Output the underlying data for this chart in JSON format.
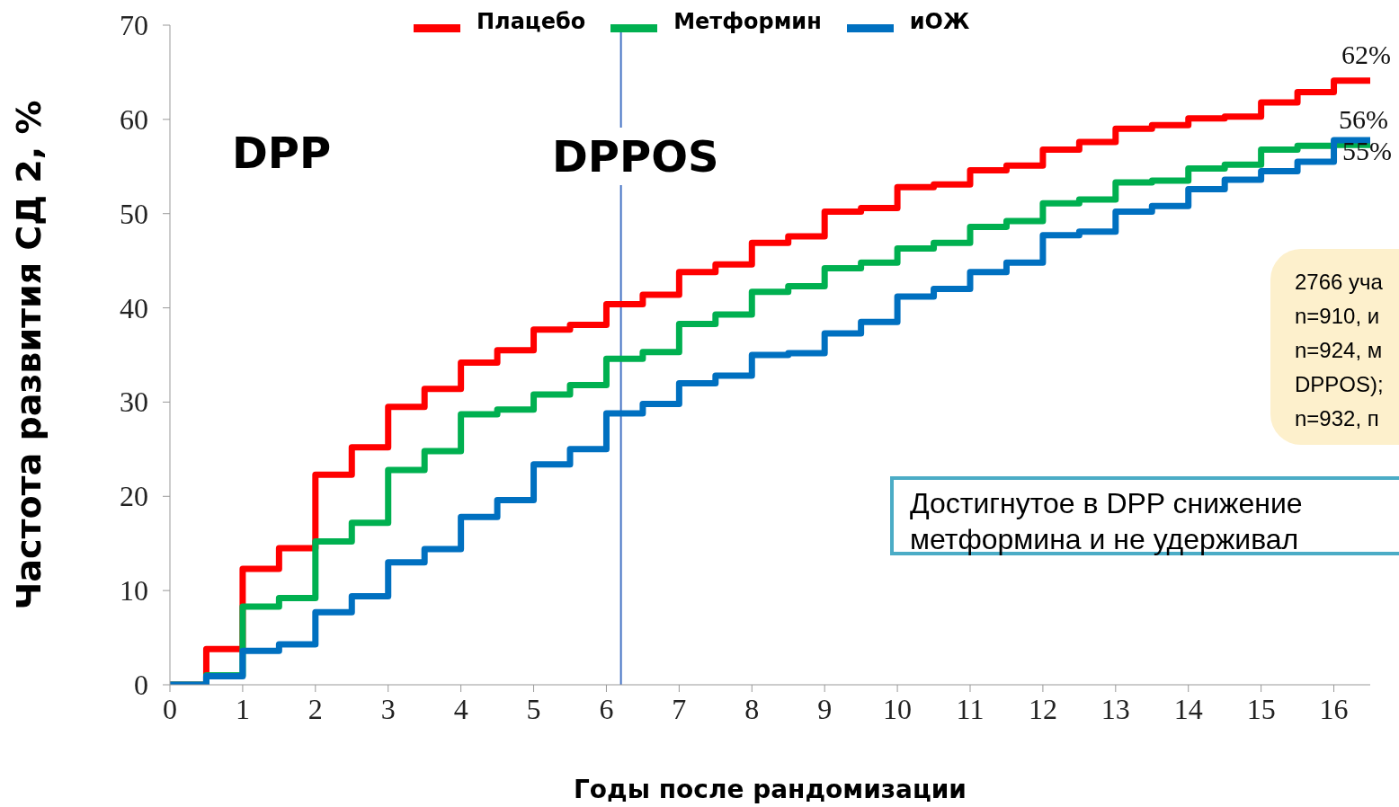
{
  "chart_data": {
    "type": "step",
    "xlabel": "Годы после рандомизации",
    "ylabel": "Частота развития СД 2, %",
    "x": [
      0,
      0.5,
      1,
      1.5,
      2,
      2.5,
      3,
      3.5,
      4,
      4.5,
      5,
      5.5,
      6,
      6.5,
      7,
      7.5,
      8,
      8.5,
      9,
      9.5,
      10,
      10.5,
      11,
      11.5,
      12,
      12.5,
      13,
      13.5,
      14,
      14.5,
      15,
      15.5,
      16,
      16.5
    ],
    "series": [
      {
        "name": "Плацебо",
        "color": "#ff0000",
        "values": [
          0,
          3.8,
          12.3,
          14.5,
          22.3,
          25.2,
          29.5,
          31.4,
          34.2,
          35.5,
          37.7,
          38.2,
          40.4,
          41.4,
          43.8,
          44.6,
          46.9,
          47.6,
          50.2,
          50.6,
          52.8,
          53.1,
          54.6,
          55.1,
          56.8,
          57.6,
          59.0,
          59.4,
          60.1,
          60.3,
          61.8,
          62.9,
          64.1,
          64.1
        ]
      },
      {
        "name": "Метформин",
        "color": "#00b050",
        "values": [
          0,
          1.0,
          8.3,
          9.2,
          15.2,
          17.2,
          22.8,
          24.8,
          28.7,
          29.2,
          30.8,
          31.8,
          34.6,
          35.3,
          38.3,
          39.3,
          41.7,
          42.3,
          44.2,
          44.8,
          46.3,
          46.9,
          48.6,
          49.2,
          51.1,
          51.5,
          53.3,
          53.5,
          54.8,
          55.2,
          56.8,
          57.2,
          57.3,
          57.3
        ]
      },
      {
        "name": "иОЖ",
        "color": "#0070c0",
        "values": [
          0,
          0.9,
          3.6,
          4.3,
          7.7,
          9.4,
          13.0,
          14.4,
          17.8,
          19.6,
          23.4,
          25.0,
          28.8,
          29.8,
          32.0,
          32.8,
          35.0,
          35.2,
          37.3,
          38.5,
          41.2,
          42.0,
          43.8,
          44.8,
          47.7,
          48.1,
          50.2,
          50.8,
          52.6,
          53.6,
          54.5,
          55.5,
          57.8,
          57.8
        ]
      }
    ],
    "xlim": [
      0,
      16.5
    ],
    "xticks": [
      0,
      1,
      2,
      3,
      4,
      5,
      6,
      7,
      8,
      9,
      10,
      11,
      12,
      13,
      14,
      15,
      16
    ],
    "ylim": [
      0,
      70
    ],
    "yticks": [
      0,
      10,
      20,
      30,
      40,
      50,
      60,
      70
    ],
    "ref_lines": [
      {
        "axis": "x",
        "value": 6.2,
        "color": "#4472c4"
      }
    ],
    "annotations": [
      "DPP",
      "DPPOS",
      "2766 уча\nn=910, и\nn=924, м\nDPPOS);\nn=932, п",
      "Достигнутое в DPP снижение\nметформина и не удерживал",
      "62%",
      "56%",
      "55%"
    ],
    "legend": "top",
    "grid": false,
    "marker": "none",
    "line_style": "solid"
  }
}
